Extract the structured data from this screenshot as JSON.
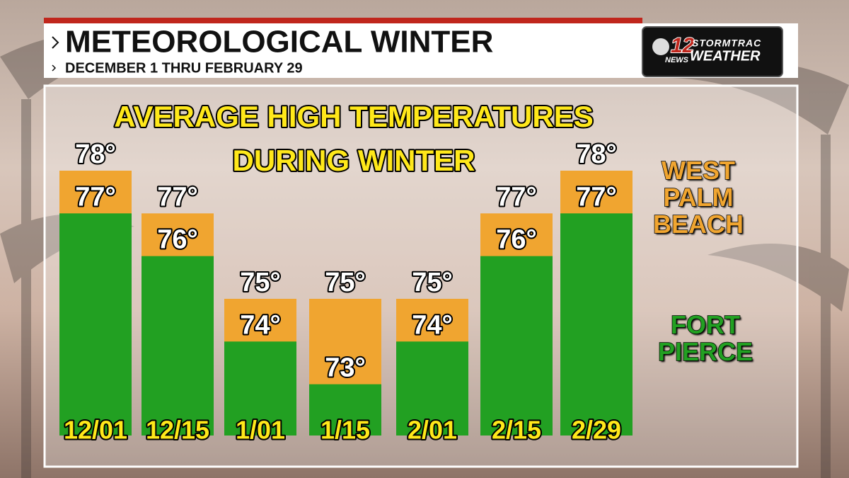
{
  "header": {
    "title": "METEOROLOGICAL WINTER",
    "subtitle": "DECEMBER 1 THRU FEBRUARY 29"
  },
  "logo": {
    "number": "12",
    "news": "NEWS",
    "brand": "STORMTRAC",
    "product": "WEATHER"
  },
  "chart_data": {
    "type": "bar",
    "title": "AVERAGE HIGH TEMPERATURES DURING WINTER",
    "categories": [
      "12/01",
      "12/15",
      "1/01",
      "1/15",
      "2/01",
      "2/15",
      "2/29"
    ],
    "series": [
      {
        "name": "WEST PALM BEACH",
        "color": "#f0a530",
        "values": [
          78,
          77,
          75,
          75,
          75,
          77,
          78
        ],
        "value_labels": [
          "78°",
          "77°",
          "75°",
          "75°",
          "75°",
          "77°",
          "78°"
        ]
      },
      {
        "name": "FORT PIERCE",
        "color": "#22a022",
        "values": [
          77,
          76,
          74,
          73,
          74,
          76,
          77
        ],
        "value_labels": [
          "77°",
          "76°",
          "74°",
          "73°",
          "74°",
          "76°",
          "77°"
        ]
      }
    ],
    "ylim": [
      71.8,
      78
    ]
  }
}
